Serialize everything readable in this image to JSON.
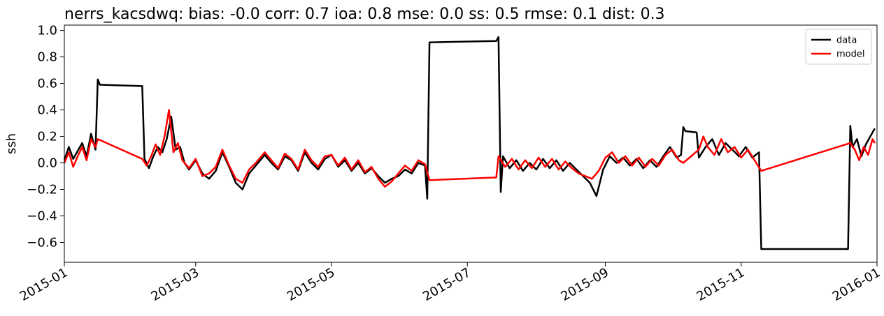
{
  "chart_data": {
    "type": "line",
    "title": "nerrs_kacsdwq: bias: -0.0  corr: 0.7  ioa: 0.8  mse: 0.0  ss: 0.5  rmse: 0.1  dist: 0.3",
    "xlabel": "",
    "ylabel": "ssh",
    "xlim": [
      "2015-01-01",
      "2016-01-01"
    ],
    "ylim": [
      -0.75,
      1.04
    ],
    "x_ticks": [
      "2015-01",
      "2015-03",
      "2015-05",
      "2015-07",
      "2015-09",
      "2015-11",
      "2016-01"
    ],
    "y_ticks": [
      "1.0",
      "0.8",
      "0.6",
      "0.4",
      "0.2",
      "0.0",
      "−0.2",
      "−0.4",
      "−0.6"
    ],
    "legend": {
      "placement": "top-right"
    },
    "grid": false,
    "series": [
      {
        "name": "data",
        "color": "#000000",
        "points": [
          [
            "2015-01-01",
            0.02
          ],
          [
            "2015-01-03",
            0.12
          ],
          [
            "2015-01-05",
            0.03
          ],
          [
            "2015-01-07",
            0.09
          ],
          [
            "2015-01-09",
            0.15
          ],
          [
            "2015-01-11",
            0.05
          ],
          [
            "2015-01-13",
            0.22
          ],
          [
            "2015-01-15",
            0.1
          ],
          [
            "2015-01-16",
            0.63
          ],
          [
            "2015-01-17",
            0.59
          ],
          [
            "2015-02-05",
            0.58
          ],
          [
            "2015-02-06",
            0.03
          ],
          [
            "2015-02-08",
            -0.04
          ],
          [
            "2015-02-10",
            0.05
          ],
          [
            "2015-02-12",
            0.12
          ],
          [
            "2015-02-14",
            0.08
          ],
          [
            "2015-02-16",
            0.18
          ],
          [
            "2015-02-18",
            0.35
          ],
          [
            "2015-02-20",
            0.1
          ],
          [
            "2015-02-22",
            0.12
          ],
          [
            "2015-02-24",
            0.0
          ],
          [
            "2015-02-26",
            -0.05
          ],
          [
            "2015-03-01",
            0.02
          ],
          [
            "2015-03-04",
            -0.08
          ],
          [
            "2015-03-07",
            -0.12
          ],
          [
            "2015-03-10",
            -0.06
          ],
          [
            "2015-03-13",
            0.08
          ],
          [
            "2015-03-16",
            -0.03
          ],
          [
            "2015-03-19",
            -0.15
          ],
          [
            "2015-03-22",
            -0.2
          ],
          [
            "2015-03-25",
            -0.08
          ],
          [
            "2015-03-28",
            -0.02
          ],
          [
            "2015-04-01",
            0.06
          ],
          [
            "2015-04-04",
            0.0
          ],
          [
            "2015-04-07",
            -0.05
          ],
          [
            "2015-04-10",
            0.05
          ],
          [
            "2015-04-13",
            0.02
          ],
          [
            "2015-04-16",
            -0.06
          ],
          [
            "2015-04-19",
            0.08
          ],
          [
            "2015-04-22",
            0.0
          ],
          [
            "2015-04-25",
            -0.05
          ],
          [
            "2015-04-28",
            0.03
          ],
          [
            "2015-05-01",
            0.06
          ],
          [
            "2015-05-04",
            -0.03
          ],
          [
            "2015-05-07",
            0.02
          ],
          [
            "2015-05-10",
            -0.06
          ],
          [
            "2015-05-13",
            0.0
          ],
          [
            "2015-05-16",
            -0.08
          ],
          [
            "2015-05-19",
            -0.04
          ],
          [
            "2015-05-22",
            -0.1
          ],
          [
            "2015-05-25",
            -0.15
          ],
          [
            "2015-05-28",
            -0.12
          ],
          [
            "2015-05-31",
            -0.1
          ],
          [
            "2015-06-03",
            -0.05
          ],
          [
            "2015-06-06",
            -0.08
          ],
          [
            "2015-06-09",
            0.0
          ],
          [
            "2015-06-12",
            -0.02
          ],
          [
            "2015-06-13",
            -0.27
          ],
          [
            "2015-06-14",
            0.91
          ],
          [
            "2015-07-14",
            0.92
          ],
          [
            "2015-07-15",
            0.95
          ],
          [
            "2015-07-16",
            -0.22
          ],
          [
            "2015-07-17",
            0.05
          ],
          [
            "2015-07-20",
            -0.04
          ],
          [
            "2015-07-23",
            0.02
          ],
          [
            "2015-07-26",
            -0.06
          ],
          [
            "2015-07-29",
            0.0
          ],
          [
            "2015-08-01",
            -0.05
          ],
          [
            "2015-08-04",
            0.03
          ],
          [
            "2015-08-07",
            -0.04
          ],
          [
            "2015-08-10",
            0.02
          ],
          [
            "2015-08-13",
            -0.06
          ],
          [
            "2015-08-16",
            0.0
          ],
          [
            "2015-08-19",
            -0.05
          ],
          [
            "2015-08-22",
            -0.1
          ],
          [
            "2015-08-25",
            -0.15
          ],
          [
            "2015-08-28",
            -0.25
          ],
          [
            "2015-08-31",
            -0.05
          ],
          [
            "2015-09-03",
            0.05
          ],
          [
            "2015-09-06",
            0.0
          ],
          [
            "2015-09-09",
            0.04
          ],
          [
            "2015-09-12",
            -0.02
          ],
          [
            "2015-09-15",
            0.03
          ],
          [
            "2015-09-18",
            -0.04
          ],
          [
            "2015-09-21",
            0.02
          ],
          [
            "2015-09-24",
            -0.03
          ],
          [
            "2015-09-27",
            0.05
          ],
          [
            "2015-09-30",
            0.12
          ],
          [
            "2015-10-03",
            0.04
          ],
          [
            "2015-10-05",
            0.06
          ],
          [
            "2015-10-06",
            0.27
          ],
          [
            "2015-10-07",
            0.24
          ],
          [
            "2015-10-12",
            0.23
          ],
          [
            "2015-10-13",
            0.04
          ],
          [
            "2015-10-16",
            0.12
          ],
          [
            "2015-10-19",
            0.18
          ],
          [
            "2015-10-22",
            0.06
          ],
          [
            "2015-10-25",
            0.15
          ],
          [
            "2015-10-28",
            0.1
          ],
          [
            "2015-10-31",
            0.05
          ],
          [
            "2015-11-03",
            0.12
          ],
          [
            "2015-11-06",
            0.04
          ],
          [
            "2015-11-09",
            0.08
          ],
          [
            "2015-11-10",
            -0.65
          ],
          [
            "2015-12-19",
            -0.65
          ],
          [
            "2015-12-20",
            0.28
          ],
          [
            "2015-12-21",
            0.12
          ],
          [
            "2015-12-23",
            0.18
          ],
          [
            "2015-12-25",
            0.05
          ],
          [
            "2015-12-27",
            0.14
          ],
          [
            "2015-12-29",
            0.2
          ],
          [
            "2015-12-31",
            0.26
          ]
        ]
      },
      {
        "name": "model",
        "color": "#ff0000",
        "points": [
          [
            "2015-01-01",
            0.0
          ],
          [
            "2015-01-03",
            0.08
          ],
          [
            "2015-01-05",
            -0.03
          ],
          [
            "2015-01-07",
            0.05
          ],
          [
            "2015-01-09",
            0.12
          ],
          [
            "2015-01-11",
            0.02
          ],
          [
            "2015-01-13",
            0.18
          ],
          [
            "2015-01-15",
            0.12
          ],
          [
            "2015-01-16",
            0.18
          ],
          [
            "2015-02-05",
            0.03
          ],
          [
            "2015-02-07",
            -0.02
          ],
          [
            "2015-02-09",
            0.05
          ],
          [
            "2015-02-11",
            0.14
          ],
          [
            "2015-02-13",
            0.06
          ],
          [
            "2015-02-15",
            0.2
          ],
          [
            "2015-02-17",
            0.4
          ],
          [
            "2015-02-19",
            0.08
          ],
          [
            "2015-02-21",
            0.15
          ],
          [
            "2015-02-23",
            0.02
          ],
          [
            "2015-02-26",
            -0.04
          ],
          [
            "2015-03-01",
            0.03
          ],
          [
            "2015-03-04",
            -0.1
          ],
          [
            "2015-03-07",
            -0.08
          ],
          [
            "2015-03-10",
            -0.03
          ],
          [
            "2015-03-13",
            0.1
          ],
          [
            "2015-03-16",
            -0.02
          ],
          [
            "2015-03-19",
            -0.12
          ],
          [
            "2015-03-22",
            -0.15
          ],
          [
            "2015-03-25",
            -0.05
          ],
          [
            "2015-03-28",
            0.0
          ],
          [
            "2015-04-01",
            0.08
          ],
          [
            "2015-04-04",
            0.02
          ],
          [
            "2015-04-07",
            -0.04
          ],
          [
            "2015-04-10",
            0.07
          ],
          [
            "2015-04-13",
            0.03
          ],
          [
            "2015-04-16",
            -0.05
          ],
          [
            "2015-04-19",
            0.1
          ],
          [
            "2015-04-22",
            0.02
          ],
          [
            "2015-04-25",
            -0.03
          ],
          [
            "2015-04-28",
            0.05
          ],
          [
            "2015-05-01",
            0.06
          ],
          [
            "2015-05-04",
            -0.02
          ],
          [
            "2015-05-07",
            0.04
          ],
          [
            "2015-05-10",
            -0.05
          ],
          [
            "2015-05-13",
            0.02
          ],
          [
            "2015-05-16",
            -0.07
          ],
          [
            "2015-05-19",
            -0.03
          ],
          [
            "2015-05-22",
            -0.12
          ],
          [
            "2015-05-25",
            -0.18
          ],
          [
            "2015-05-28",
            -0.14
          ],
          [
            "2015-05-31",
            -0.08
          ],
          [
            "2015-06-03",
            -0.02
          ],
          [
            "2015-06-06",
            -0.06
          ],
          [
            "2015-06-09",
            0.02
          ],
          [
            "2015-06-12",
            -0.01
          ],
          [
            "2015-06-14",
            -0.13
          ],
          [
            "2015-07-14",
            -0.11
          ],
          [
            "2015-07-15",
            0.05
          ],
          [
            "2015-07-18",
            -0.03
          ],
          [
            "2015-07-21",
            0.03
          ],
          [
            "2015-07-24",
            -0.05
          ],
          [
            "2015-07-27",
            0.02
          ],
          [
            "2015-07-30",
            -0.04
          ],
          [
            "2015-08-02",
            0.04
          ],
          [
            "2015-08-05",
            -0.03
          ],
          [
            "2015-08-08",
            0.03
          ],
          [
            "2015-08-11",
            -0.05
          ],
          [
            "2015-08-14",
            0.01
          ],
          [
            "2015-08-17",
            -0.04
          ],
          [
            "2015-08-20",
            -0.08
          ],
          [
            "2015-08-23",
            -0.1
          ],
          [
            "2015-08-26",
            -0.12
          ],
          [
            "2015-08-29",
            -0.06
          ],
          [
            "2015-09-01",
            0.04
          ],
          [
            "2015-09-04",
            0.08
          ],
          [
            "2015-09-07",
            0.0
          ],
          [
            "2015-09-10",
            0.05
          ],
          [
            "2015-09-13",
            -0.02
          ],
          [
            "2015-09-16",
            0.04
          ],
          [
            "2015-09-19",
            -0.03
          ],
          [
            "2015-09-22",
            0.03
          ],
          [
            "2015-09-25",
            -0.02
          ],
          [
            "2015-09-28",
            0.06
          ],
          [
            "2015-10-01",
            0.1
          ],
          [
            "2015-10-04",
            0.02
          ],
          [
            "2015-10-06",
            0.0
          ],
          [
            "2015-10-13",
            0.1
          ],
          [
            "2015-10-15",
            0.2
          ],
          [
            "2015-10-17",
            0.12
          ],
          [
            "2015-10-20",
            0.06
          ],
          [
            "2015-10-23",
            0.18
          ],
          [
            "2015-10-26",
            0.08
          ],
          [
            "2015-10-29",
            0.12
          ],
          [
            "2015-11-01",
            0.04
          ],
          [
            "2015-11-04",
            0.1
          ],
          [
            "2015-11-07",
            0.02
          ],
          [
            "2015-11-10",
            -0.06
          ],
          [
            "2015-12-20",
            0.15
          ],
          [
            "2015-12-22",
            0.1
          ],
          [
            "2015-12-24",
            0.02
          ],
          [
            "2015-12-26",
            0.12
          ],
          [
            "2015-12-28",
            0.06
          ],
          [
            "2015-12-30",
            0.18
          ],
          [
            "2015-12-31",
            0.15
          ]
        ]
      }
    ]
  }
}
